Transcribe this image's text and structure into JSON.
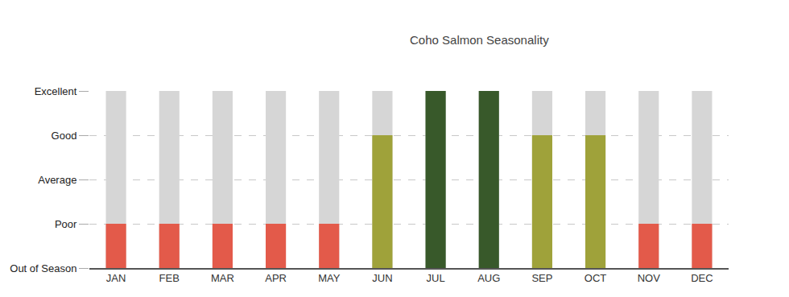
{
  "chart_data": {
    "type": "bar",
    "title": "Coho Salmon Seasonality",
    "categories": [
      "JAN",
      "FEB",
      "MAR",
      "APR",
      "MAY",
      "JUN",
      "JUL",
      "AUG",
      "SEP",
      "OCT",
      "NOV",
      "DEC"
    ],
    "values": [
      1,
      1,
      1,
      1,
      1,
      3,
      4,
      4,
      3,
      3,
      1,
      1
    ],
    "colors": [
      "#e35a4a",
      "#e35a4a",
      "#e35a4a",
      "#e35a4a",
      "#e35a4a",
      "#9fa23a",
      "#38592a",
      "#38592a",
      "#9fa23a",
      "#9fa23a",
      "#e35a4a",
      "#e35a4a"
    ],
    "ylim": [
      0,
      4
    ],
    "yticks": [
      {
        "value": 0,
        "label": "Out of Season"
      },
      {
        "value": 1,
        "label": "Poor"
      },
      {
        "value": 2,
        "label": "Average"
      },
      {
        "value": 3,
        "label": "Good"
      },
      {
        "value": 4,
        "label": "Excellent"
      }
    ],
    "grid": true
  }
}
